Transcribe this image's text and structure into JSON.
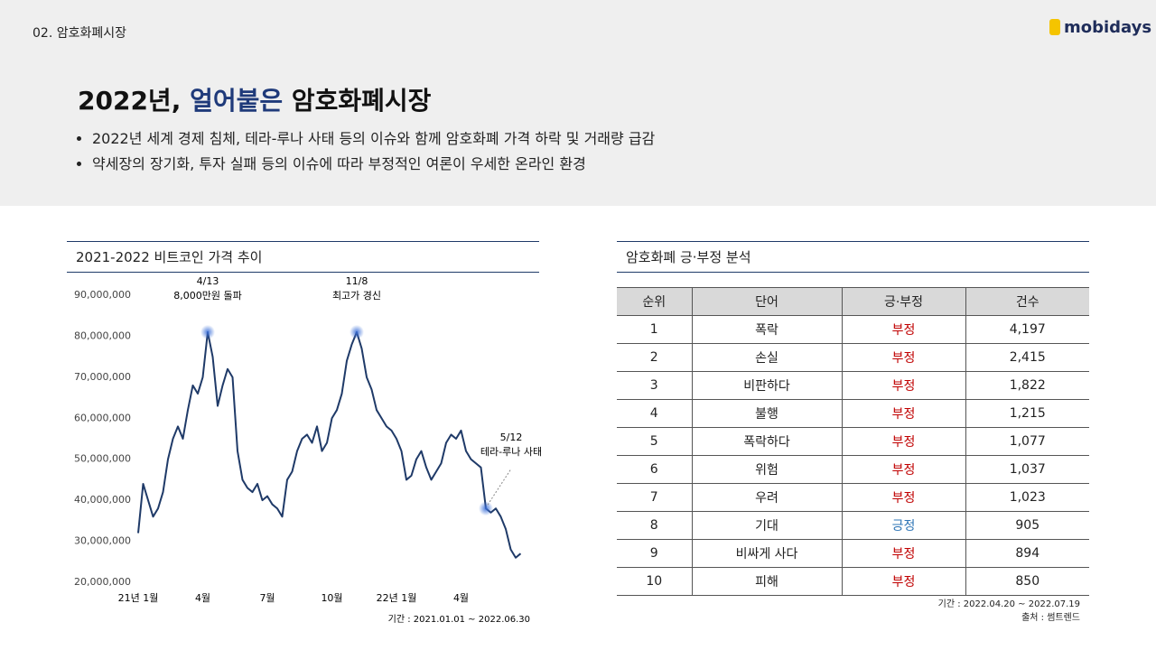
{
  "header": {
    "section": "02. 암호화폐시장",
    "logo": "mobidays",
    "title_parts": [
      {
        "text": "2022년, ",
        "color": "#111111"
      },
      {
        "text": "얼어붙은",
        "color": "#1f3a7a"
      },
      {
        "text": " 암호화폐시장",
        "color": "#111111"
      }
    ],
    "bullets": [
      "2022년 세계 경제 침체, 테라-루나 사태 등의 이슈와 함께 암호화폐 가격 하락 및 거래량 급감",
      "약세장의 장기화, 투자 실패 등의 이슈에 따라 부정적인 여론이 우세한 온라인 환경"
    ]
  },
  "chart_data": {
    "type": "line",
    "title": "2021-2022 비트코인 가격 추이",
    "note": "기간 : 2021.01.01 ~ 2022.06.30",
    "categories": [
      "21년 1월",
      null,
      null,
      null,
      null,
      null,
      null,
      null,
      null,
      null,
      null,
      null,
      null,
      "4월",
      null,
      null,
      null,
      null,
      null,
      null,
      null,
      null,
      null,
      null,
      null,
      null,
      "7월",
      null,
      null,
      null,
      null,
      null,
      null,
      null,
      null,
      null,
      null,
      null,
      null,
      "10월",
      null,
      null,
      null,
      null,
      null,
      null,
      null,
      null,
      null,
      null,
      null,
      null,
      "22년 1월",
      null,
      null,
      null,
      null,
      null,
      null,
      null,
      null,
      null,
      null,
      null,
      null,
      "4월",
      null,
      null,
      null,
      null,
      null,
      null,
      null,
      null,
      null,
      null,
      null,
      null
    ],
    "series": [
      {
        "name": "비트코인",
        "color": "#1f3a68",
        "values": [
          32000000,
          44000000,
          40000000,
          36000000,
          38000000,
          42000000,
          50000000,
          55000000,
          58000000,
          55000000,
          62000000,
          68000000,
          66000000,
          70000000,
          81000000,
          75000000,
          63000000,
          68000000,
          72000000,
          70000000,
          52000000,
          45000000,
          43000000,
          42000000,
          44000000,
          40000000,
          41000000,
          39000000,
          38000000,
          36000000,
          45000000,
          47000000,
          52000000,
          55000000,
          56000000,
          54000000,
          58000000,
          52000000,
          54000000,
          60000000,
          62000000,
          66000000,
          74000000,
          78000000,
          81000000,
          77000000,
          70000000,
          67000000,
          62000000,
          60000000,
          58000000,
          57000000,
          55000000,
          52000000,
          45000000,
          46000000,
          50000000,
          52000000,
          48000000,
          45000000,
          47000000,
          49000000,
          54000000,
          56000000,
          55000000,
          57000000,
          52000000,
          50000000,
          49000000,
          48000000,
          38000000,
          37000000,
          38000000,
          36000000,
          33000000,
          28000000,
          26000000,
          27000000
        ]
      }
    ],
    "ylim": [
      20000000,
      90000000
    ],
    "yticks": [
      {
        "value": 20000000,
        "label": "20,000,000"
      },
      {
        "value": 30000000,
        "label": "30,000,000"
      },
      {
        "value": 40000000,
        "label": "40,000,000"
      },
      {
        "value": 50000000,
        "label": "50,000,000"
      },
      {
        "value": 60000000,
        "label": "60,000,000"
      },
      {
        "value": 70000000,
        "label": "70,000,000"
      },
      {
        "value": 80000000,
        "label": "80,000,000"
      },
      {
        "value": 90000000,
        "label": "90,000,000"
      }
    ],
    "annotations": [
      {
        "date": "4/13",
        "text": "8,000만원 돌파"
      },
      {
        "date": "11/8",
        "text": "최고가 경신"
      },
      {
        "date": "5/12",
        "text": "테라-루나 사태"
      }
    ]
  },
  "table": {
    "title": "암호화폐 긍·부정 분석",
    "headers": [
      "순위",
      "단어",
      "긍·부정",
      "건수"
    ],
    "rows": [
      [
        "1",
        "폭락",
        "부정",
        "4,197"
      ],
      [
        "2",
        "손실",
        "부정",
        "2,415"
      ],
      [
        "3",
        "비판하다",
        "부정",
        "1,822"
      ],
      [
        "4",
        "불행",
        "부정",
        "1,215"
      ],
      [
        "5",
        "폭락하다",
        "부정",
        "1,077"
      ],
      [
        "6",
        "위험",
        "부정",
        "1,037"
      ],
      [
        "7",
        "우려",
        "부정",
        "1,023"
      ],
      [
        "8",
        "기대",
        "긍정",
        "905"
      ],
      [
        "9",
        "비싸게 사다",
        "부정",
        "894"
      ],
      [
        "10",
        "피해",
        "부정",
        "850"
      ]
    ],
    "sentiment_colors": {
      "부정": "#c00000",
      "긍정": "#2e75b6"
    },
    "notes": [
      "기간 : 2022.04.20 ~ 2022.07.19",
      "출처 : 썸트렌드"
    ]
  }
}
